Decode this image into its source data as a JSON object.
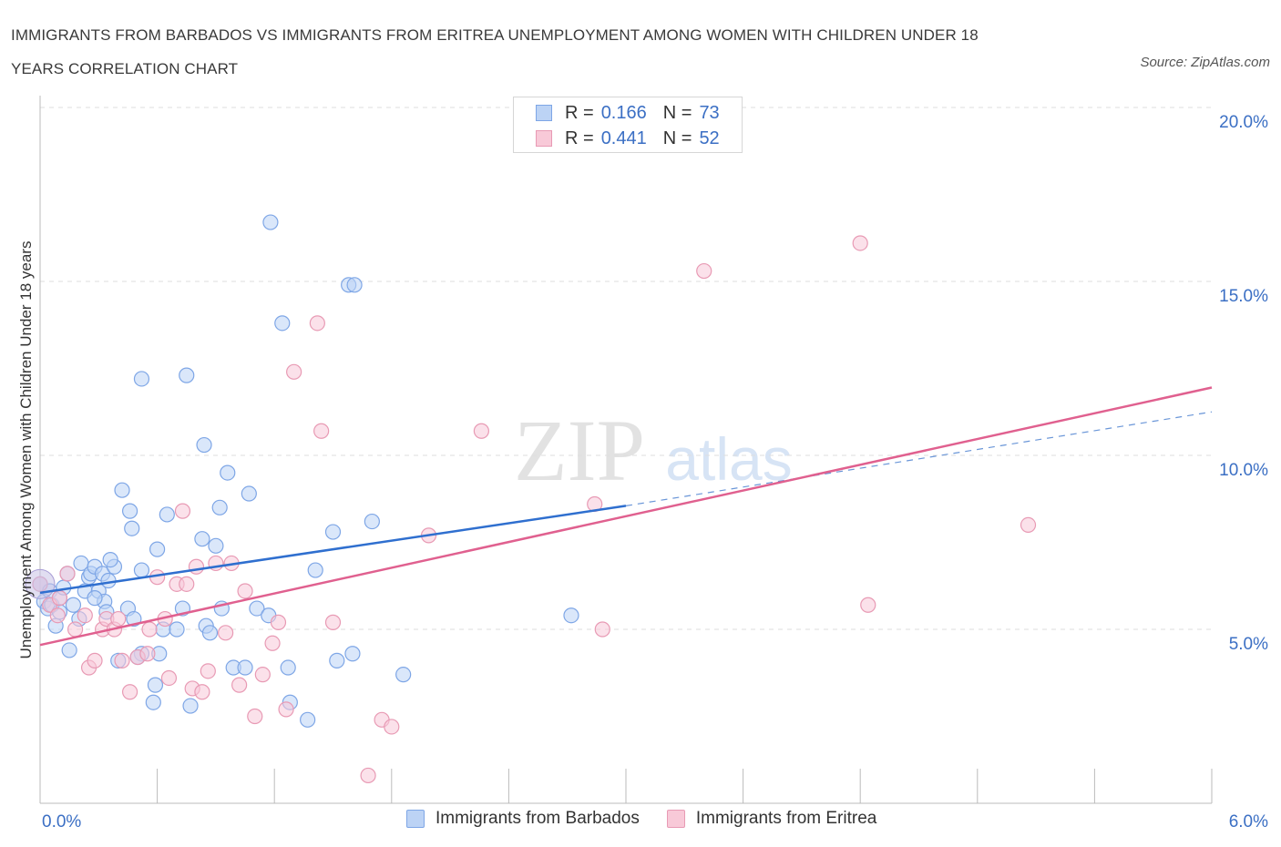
{
  "title_line1": "IMMIGRANTS FROM BARBADOS VS IMMIGRANTS FROM ERITREA UNEMPLOYMENT AMONG WOMEN WITH CHILDREN UNDER 18",
  "title_line2": "YEARS CORRELATION CHART",
  "source": "Source: ZipAtlas.com",
  "watermark_zip": "ZIP",
  "watermark_atlas": "atlas",
  "legend": {
    "rows": [
      {
        "r_label": "R =",
        "r_value": "0.166",
        "n_label": "N =",
        "n_value": "73",
        "color": "#7ea6e6",
        "fill": "#bcd3f5"
      },
      {
        "r_label": "R =",
        "r_value": "0.441",
        "n_label": "N =",
        "n_value": "52",
        "color": "#e89ab4",
        "fill": "#f8c9d8"
      }
    ]
  },
  "bottom_legend": [
    {
      "label": "Immigrants from Barbados",
      "color": "#7ea6e6",
      "fill": "#bcd3f5"
    },
    {
      "label": "Immigrants from Eritrea",
      "color": "#e89ab4",
      "fill": "#f8c9d8"
    }
  ],
  "chart_data": {
    "type": "scatter",
    "title": "IMMIGRANTS FROM BARBADOS VS IMMIGRANTS FROM ERITREA UNEMPLOYMENT AMONG WOMEN WITH CHILDREN UNDER 18 YEARS CORRELATION CHART",
    "xlabel": "",
    "ylabel": "Unemployment Among Women with Children Under 18 years",
    "xlim": [
      0,
      6
    ],
    "ylim": [
      0,
      20
    ],
    "x_tick_labels": [
      "0.0%",
      "6.0%"
    ],
    "y_ticks": [
      5,
      10,
      15,
      20
    ],
    "y_tick_labels": [
      "5.0%",
      "10.0%",
      "15.0%",
      "20.0%"
    ],
    "grid": true,
    "series": [
      {
        "name": "Immigrants from Barbados",
        "color": "#3070d0",
        "points": [
          [
            0.0,
            6.3
          ],
          [
            0.02,
            5.8
          ],
          [
            0.04,
            5.6
          ],
          [
            0.05,
            6.1
          ],
          [
            0.06,
            5.7
          ],
          [
            0.08,
            5.1
          ],
          [
            0.1,
            5.9
          ],
          [
            0.12,
            6.2
          ],
          [
            0.14,
            6.6
          ],
          [
            0.15,
            4.4
          ],
          [
            0.17,
            5.7
          ],
          [
            0.2,
            5.3
          ],
          [
            0.21,
            6.9
          ],
          [
            0.23,
            6.1
          ],
          [
            0.25,
            6.5
          ],
          [
            0.26,
            6.6
          ],
          [
            0.28,
            6.8
          ],
          [
            0.3,
            6.1
          ],
          [
            0.32,
            6.6
          ],
          [
            0.33,
            5.8
          ],
          [
            0.34,
            5.5
          ],
          [
            0.35,
            6.4
          ],
          [
            0.38,
            6.8
          ],
          [
            0.4,
            4.1
          ],
          [
            0.36,
            7.0
          ],
          [
            0.42,
            9.0
          ],
          [
            0.45,
            5.6
          ],
          [
            0.46,
            8.4
          ],
          [
            0.48,
            5.3
          ],
          [
            0.47,
            7.9
          ],
          [
            0.52,
            4.3
          ],
          [
            0.5,
            4.2
          ],
          [
            0.52,
            6.7
          ],
          [
            0.58,
            2.9
          ],
          [
            0.59,
            3.4
          ],
          [
            0.6,
            7.3
          ],
          [
            0.61,
            4.3
          ],
          [
            0.63,
            5.0
          ],
          [
            0.65,
            8.3
          ],
          [
            0.7,
            5.0
          ],
          [
            0.73,
            5.6
          ],
          [
            0.75,
            12.3
          ],
          [
            0.77,
            2.8
          ],
          [
            0.83,
            7.6
          ],
          [
            0.84,
            10.3
          ],
          [
            0.85,
            5.1
          ],
          [
            0.87,
            4.9
          ],
          [
            0.9,
            7.4
          ],
          [
            0.92,
            8.5
          ],
          [
            0.93,
            5.6
          ],
          [
            0.96,
            9.5
          ],
          [
            0.99,
            3.9
          ],
          [
            1.05,
            3.9
          ],
          [
            1.07,
            8.9
          ],
          [
            1.11,
            5.6
          ],
          [
            1.17,
            5.4
          ],
          [
            1.18,
            16.7
          ],
          [
            1.24,
            13.8
          ],
          [
            1.27,
            3.9
          ],
          [
            1.28,
            2.9
          ],
          [
            1.37,
            2.4
          ],
          [
            1.41,
            6.7
          ],
          [
            1.5,
            7.8
          ],
          [
            1.52,
            4.1
          ],
          [
            1.58,
            14.9
          ],
          [
            1.6,
            4.3
          ],
          [
            1.61,
            14.9
          ],
          [
            1.7,
            8.1
          ],
          [
            1.86,
            3.7
          ],
          [
            2.72,
            5.4
          ],
          [
            0.52,
            12.2
          ],
          [
            0.1,
            5.5
          ],
          [
            0.28,
            5.9
          ]
        ]
      },
      {
        "name": "Immigrants from Eritrea",
        "color": "#e0608f",
        "points": [
          [
            0.0,
            6.3
          ],
          [
            0.05,
            5.7
          ],
          [
            0.09,
            5.4
          ],
          [
            0.1,
            5.9
          ],
          [
            0.14,
            6.6
          ],
          [
            0.18,
            5.0
          ],
          [
            0.23,
            5.4
          ],
          [
            0.25,
            3.9
          ],
          [
            0.28,
            4.1
          ],
          [
            0.32,
            5.0
          ],
          [
            0.34,
            5.3
          ],
          [
            0.38,
            5.0
          ],
          [
            0.4,
            5.3
          ],
          [
            0.42,
            4.1
          ],
          [
            0.46,
            3.2
          ],
          [
            0.5,
            4.2
          ],
          [
            0.55,
            4.3
          ],
          [
            0.56,
            5.0
          ],
          [
            0.6,
            6.5
          ],
          [
            0.64,
            5.3
          ],
          [
            0.66,
            3.6
          ],
          [
            0.7,
            6.3
          ],
          [
            0.73,
            8.4
          ],
          [
            0.75,
            6.3
          ],
          [
            0.78,
            3.3
          ],
          [
            0.8,
            6.8
          ],
          [
            0.83,
            3.2
          ],
          [
            0.86,
            3.8
          ],
          [
            0.9,
            6.9
          ],
          [
            0.95,
            4.9
          ],
          [
            0.98,
            6.9
          ],
          [
            1.02,
            3.4
          ],
          [
            1.05,
            6.1
          ],
          [
            1.1,
            2.5
          ],
          [
            1.14,
            3.7
          ],
          [
            1.19,
            4.6
          ],
          [
            1.22,
            5.2
          ],
          [
            1.26,
            2.7
          ],
          [
            1.3,
            12.4
          ],
          [
            1.42,
            13.8
          ],
          [
            1.44,
            10.7
          ],
          [
            1.5,
            5.2
          ],
          [
            1.68,
            0.8
          ],
          [
            1.75,
            2.4
          ],
          [
            1.8,
            2.2
          ],
          [
            1.99,
            7.7
          ],
          [
            2.26,
            10.7
          ],
          [
            2.84,
            8.6
          ],
          [
            2.88,
            5.0
          ],
          [
            3.4,
            15.3
          ],
          [
            4.2,
            16.1
          ],
          [
            4.24,
            5.7
          ]
        ]
      }
    ],
    "extra_points": [
      [
        5.06,
        8.0
      ]
    ],
    "trend_lines": [
      {
        "series": "Immigrants from Barbados",
        "x0": 0,
        "y0": 6.05,
        "x1": 3.0,
        "y1": 8.55,
        "dashed_to": [
          6.0,
          11.25
        ]
      },
      {
        "series": "Immigrants from Eritrea",
        "x0": 0,
        "y0": 4.55,
        "x1": 6.0,
        "y1": 11.95
      }
    ]
  }
}
